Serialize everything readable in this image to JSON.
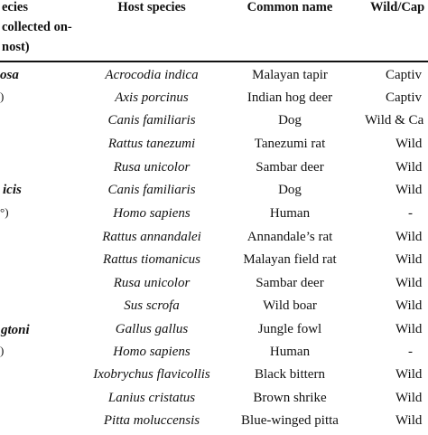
{
  "header": {
    "col1_lines": [
      "ecies",
      " collected on-",
      "nost)"
    ],
    "host_species": "Host species",
    "common_name": "Common name",
    "wild_captive": "Wild/Cap"
  },
  "tick_groups": [
    {
      "species_fragment": "osa",
      "paren_fragment": ")"
    },
    {
      "species_fragment": "icis",
      "paren_fragment": "°)"
    },
    {
      "species_fragment": "gtoni",
      "paren_fragment": ")"
    }
  ],
  "rows": [
    {
      "host": "Acrocodia indica",
      "common": "Malayan tapir",
      "status": "Captiv"
    },
    {
      "host": "Axis porcinus",
      "common": "Indian hog deer",
      "status": "Captiv"
    },
    {
      "host": "Canis familiaris",
      "common": "Dog",
      "status": "Wild & Ca"
    },
    {
      "host": "Rattus tanezumi",
      "common": "Tanezumi rat",
      "status": "Wild"
    },
    {
      "host": "Rusa unicolor",
      "common": "Sambar deer",
      "status": "Wild"
    },
    {
      "host": "Canis familiaris",
      "common": "Dog",
      "status": "Wild"
    },
    {
      "host": "Homo sapiens",
      "common": "Human",
      "status": "-"
    },
    {
      "host": "Rattus annandalei",
      "common": "Annandale’s rat",
      "status": "Wild"
    },
    {
      "host": "Rattus tiomanicus",
      "common": "Malayan field rat",
      "status": "Wild"
    },
    {
      "host": "Rusa unicolor",
      "common": "Sambar deer",
      "status": "Wild"
    },
    {
      "host": "Sus scrofa",
      "common": "Wild boar",
      "status": "Wild"
    },
    {
      "host": "Gallus gallus",
      "common": "Jungle fowl",
      "status": "Wild"
    },
    {
      "host": "Homo sapiens",
      "common": "Human",
      "status": "-"
    },
    {
      "host": "Ixobrychus flavicollis",
      "common": "Black bittern",
      "status": "Wild"
    },
    {
      "host": "Lanius cristatus",
      "common": "Brown shrike",
      "status": "Wild"
    },
    {
      "host": "Pitta moluccensis",
      "common": "Blue-winged pitta",
      "status": "Wild"
    }
  ]
}
